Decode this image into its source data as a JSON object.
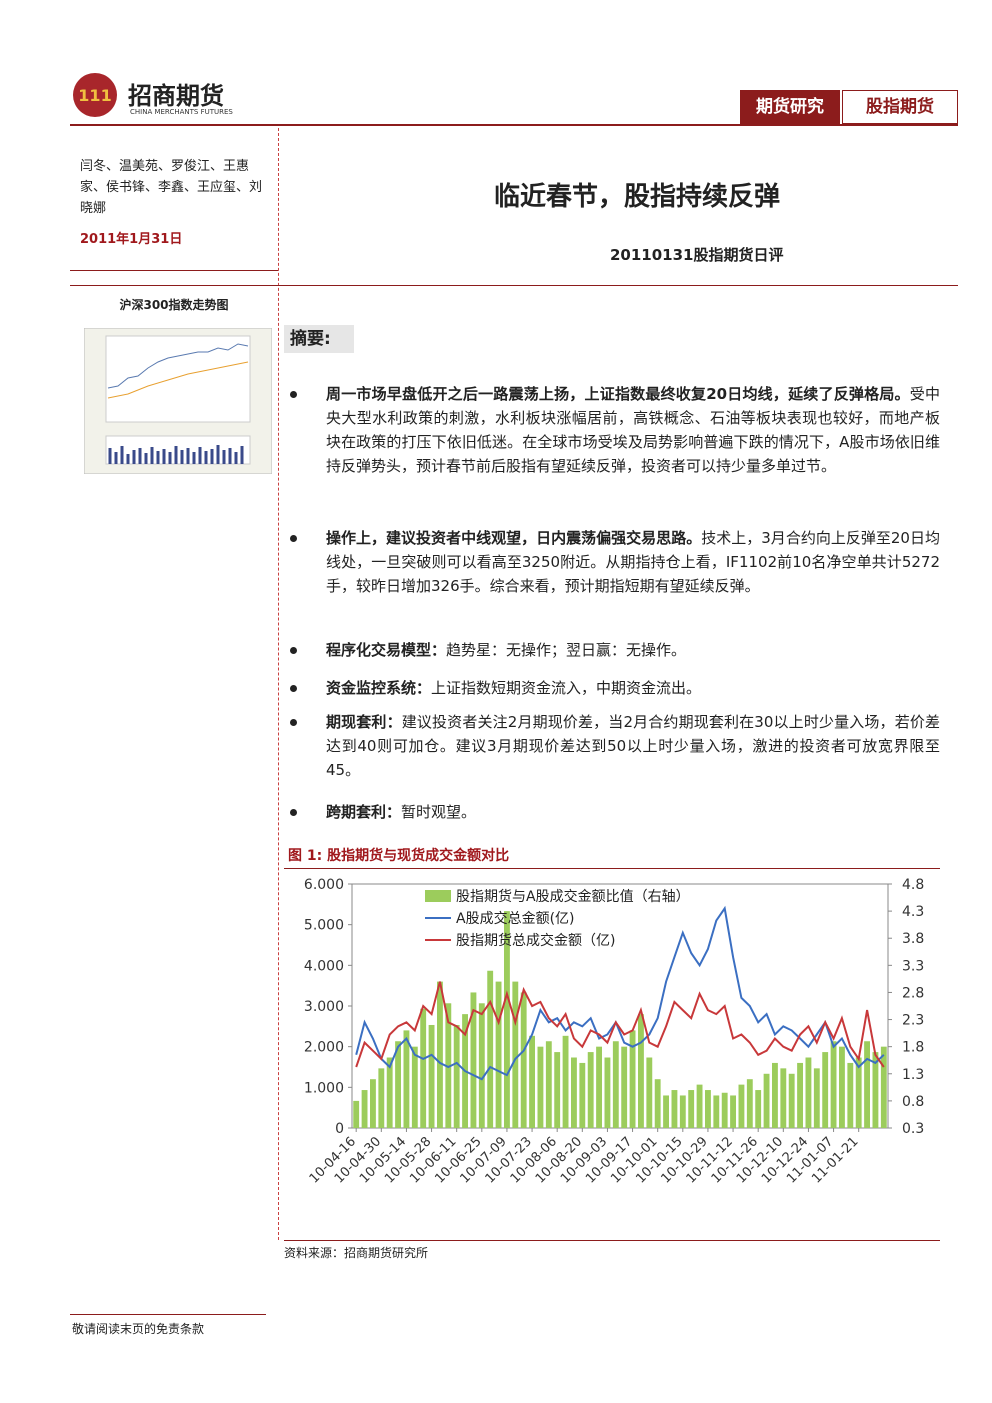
{
  "header": {
    "logo": "招商期货",
    "logo_en": "CHINA MERCHANTS FUTURES",
    "tags": [
      "期货研究",
      "股指期货"
    ]
  },
  "sidebar": {
    "authors": "闫冬、温美苑、罗俊江、王惠家、侯书锋、李鑫、王应玺、刘晓娜",
    "date": "2011年1月31日",
    "thumb_caption": "沪深300指数走势图"
  },
  "title": "临近春节，股指持续反弹",
  "subtitle": "20110131股指期货日评",
  "section": "摘要:",
  "bullets": [
    {
      "lead": "周一市场早盘低开之后一路震荡上扬，上证指数最终收复20日均线，延续了反弹格局。",
      "text": "受中央大型水利政策的刺激，水利板块涨幅居前，高铁概念、石油等板块表现也较好，而地产板块在政策的打压下依旧低迷。在全球市场受埃及局势影响普遍下跌的情况下，A股市场依旧维持反弹势头，预计春节前后股指有望延续反弹，投资者可以持少量多单过节。"
    },
    {
      "lead": "操作上，建议投资者中线观望，日内震荡偏强交易思路。",
      "text": "技术上，3月合约向上反弹至20日均线处，一旦突破则可以看高至3250附近。从期指持仓上看，IF1102前10名净空单共计5272手，较昨日增加326手。综合来看，预计期指短期有望延续反弹。"
    },
    {
      "lead": "程序化交易模型：",
      "text": "趋势星：无操作；翌日赢：无操作。"
    },
    {
      "lead": "资金监控系统：",
      "text": "上证指数短期资金流入，中期资金流出。"
    },
    {
      "lead": "期现套利：",
      "text": "建议投资者关注2月期现价差，当2月合约期现套利在30以上时少量入场，若价差达到40则可加仓。建议3月期现价差达到50以上时少量入场，激进的投资者可放宽界限至45。"
    },
    {
      "lead": "跨期套利：",
      "text": "暂时观望。"
    }
  ],
  "figure_title": "图 1: 股指期货与现货成交金额对比",
  "source": "资料来源：招商期货研究所",
  "footer": "敬请阅读末页的免责条款",
  "chart_data": {
    "type": "bar_line",
    "categories": [
      "10-04-16",
      null,
      null,
      "10-04-30",
      null,
      null,
      "10-05-14",
      null,
      null,
      "10-05-28",
      null,
      null,
      "10-06-11",
      null,
      null,
      "10-06-25",
      null,
      null,
      "10-07-09",
      null,
      null,
      "10-07-23",
      null,
      null,
      "10-08-06",
      null,
      null,
      "10-08-20",
      null,
      null,
      "10-09-03",
      null,
      null,
      "10-09-17",
      null,
      null,
      "10-10-01",
      null,
      null,
      "10-10-15",
      null,
      null,
      "10-10-29",
      null,
      null,
      "10-11-12",
      null,
      null,
      "10-11-26",
      null,
      null,
      "10-12-10",
      null,
      null,
      "10-12-24",
      null,
      null,
      "11-01-07",
      null,
      null,
      "11-01-21",
      null,
      null,
      null
    ],
    "ylim": [
      0,
      6000
    ],
    "yticks": [
      0,
      {
        "value": 1000,
        "label": "1.000"
      },
      {
        "value": 2000,
        "label": "2.000"
      },
      {
        "value": 3000,
        "label": "3.000"
      },
      {
        "value": 4000,
        "label": "4.000"
      },
      {
        "value": 5000,
        "label": "5.000"
      },
      {
        "value": 6000,
        "label": "6.000"
      }
    ],
    "y2lim": [
      0.3,
      4.8
    ],
    "y2ticks": [
      0.3,
      0.8,
      1.3,
      1.8,
      2.3,
      2.8,
      3.3,
      3.8,
      4.3,
      4.8
    ],
    "series": [
      {
        "name": "股指期货与A股成交金额比值（右轴）",
        "color": "#9ccc5c",
        "axis": "y2",
        "kind": "bar",
        "values": [
          0.8,
          1.0,
          1.2,
          1.4,
          1.6,
          1.9,
          2.1,
          1.8,
          2.5,
          2.2,
          3.0,
          2.6,
          2.2,
          2.4,
          2.8,
          2.6,
          3.2,
          3.0,
          4.3,
          3.0,
          2.8,
          2.0,
          1.8,
          1.9,
          1.7,
          2.0,
          1.6,
          1.5,
          1.7,
          1.8,
          1.6,
          1.9,
          1.8,
          2.1,
          2.4,
          1.6,
          1.2,
          0.9,
          1.0,
          0.9,
          1.0,
          1.1,
          1.0,
          0.9,
          0.95,
          0.9,
          1.1,
          1.2,
          1.0,
          1.3,
          1.5,
          1.4,
          1.3,
          1.5,
          1.6,
          1.4,
          1.7,
          1.9,
          1.8,
          1.5,
          1.6,
          1.9,
          1.7,
          1.8
        ]
      },
      {
        "name": "A股成交总金额(亿)",
        "color": "#3b6fc2",
        "kind": "line",
        "values": [
          1800,
          2600,
          2200,
          1700,
          1500,
          2000,
          2200,
          1800,
          1700,
          1800,
          1600,
          1500,
          1600,
          1400,
          1300,
          1200,
          1500,
          1400,
          1300,
          1700,
          1900,
          2300,
          2900,
          2600,
          2700,
          2400,
          2600,
          2500,
          2700,
          2200,
          2300,
          2600,
          2100,
          2000,
          2100,
          2300,
          2700,
          3600,
          4200,
          4800,
          4300,
          4000,
          4400,
          5100,
          5400,
          4200,
          3200,
          3000,
          2600,
          2800,
          2300,
          2500,
          2400,
          2200,
          2000,
          2300,
          2600,
          2000,
          2200,
          1800,
          1500,
          1700,
          1600,
          1800
        ]
      },
      {
        "name": "股指期货总成交金额（亿)",
        "color": "#c8383a",
        "kind": "line",
        "values": [
          1500,
          2100,
          1900,
          1700,
          2300,
          2500,
          2600,
          2400,
          3000,
          2800,
          3600,
          2600,
          2500,
          2300,
          2900,
          2800,
          3100,
          2600,
          3300,
          2600,
          3400,
          3000,
          3100,
          2700,
          2500,
          2800,
          2200,
          2000,
          2400,
          2300,
          2100,
          2600,
          2300,
          2400,
          2900,
          2100,
          2000,
          2500,
          3100,
          2900,
          2700,
          3300,
          2900,
          2800,
          3000,
          2200,
          2300,
          2100,
          1800,
          1900,
          2200,
          2000,
          1900,
          2300,
          2500,
          2100,
          2600,
          2200,
          2700,
          2000,
          1700,
          2900,
          1800,
          1500
        ]
      }
    ]
  }
}
